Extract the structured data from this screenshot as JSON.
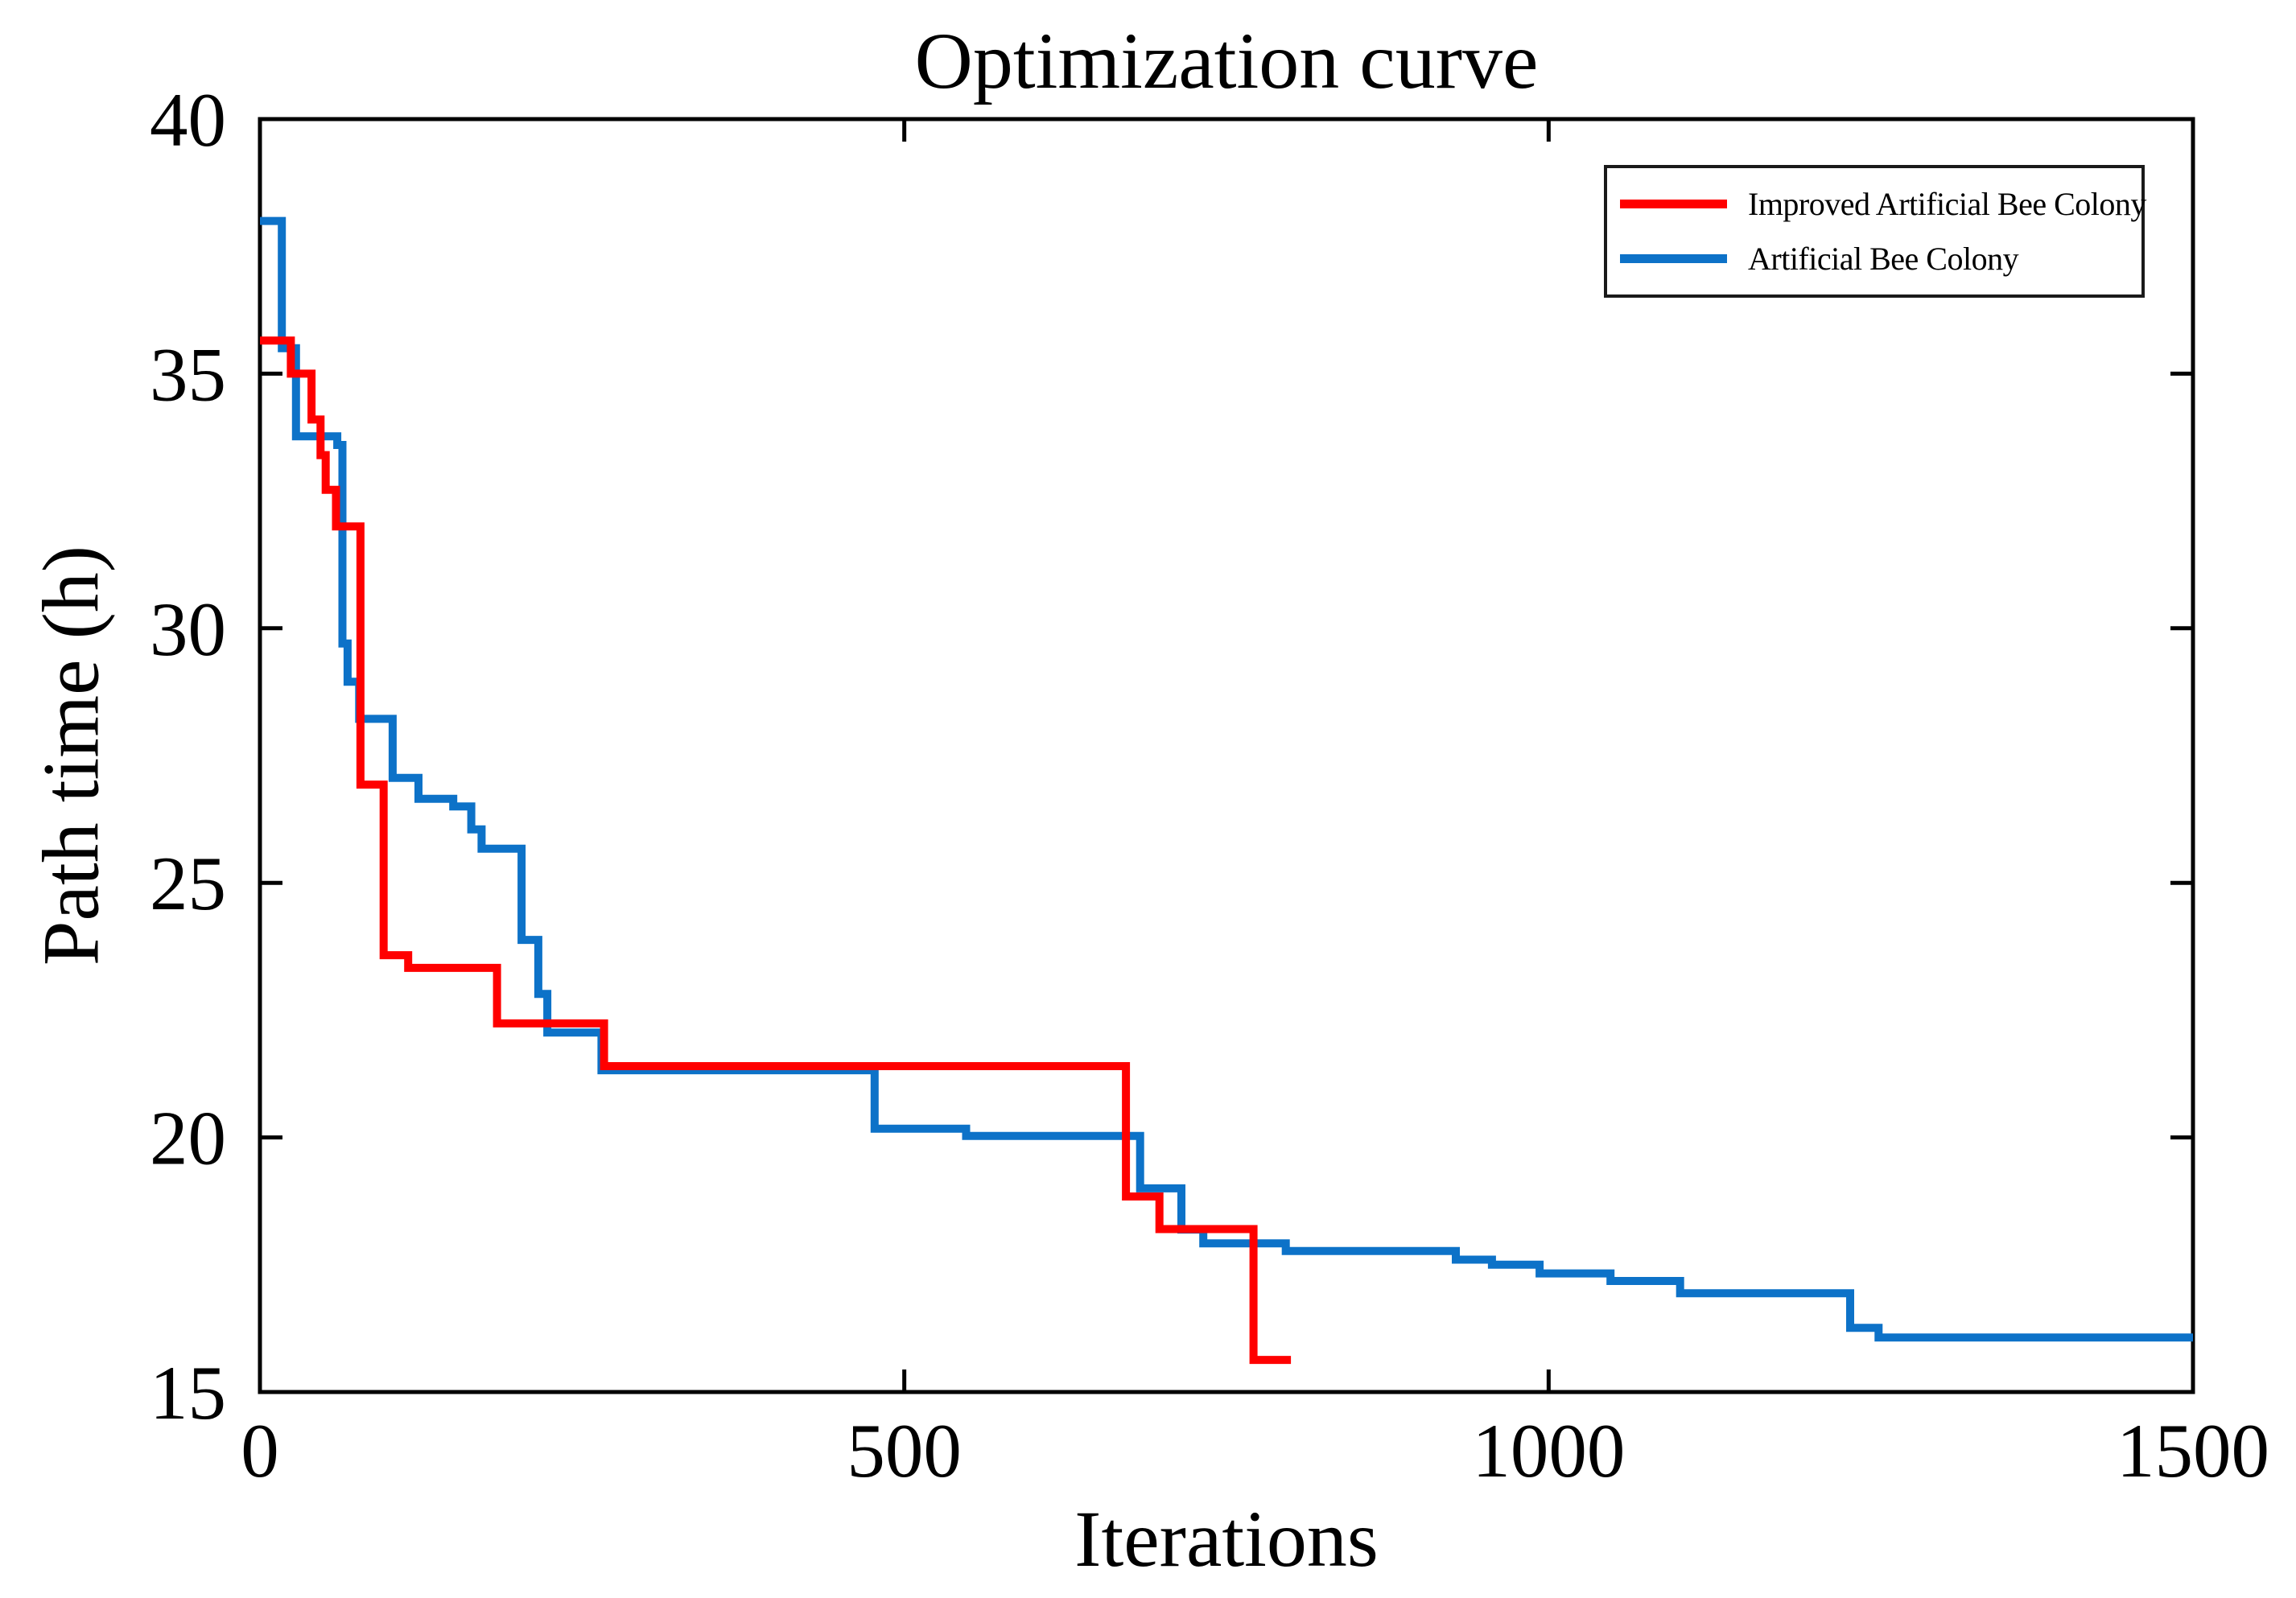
{
  "chart_data": {
    "type": "line",
    "step": true,
    "title": "Optimization curve",
    "xlabel": "Iterations",
    "ylabel": "Path time (h)",
    "xlim": [
      0,
      1500
    ],
    "ylim": [
      15,
      40
    ],
    "xticks": [
      "0",
      "500",
      "1000",
      "1500"
    ],
    "yticks": [
      "15",
      "20",
      "25",
      "30",
      "35",
      "40"
    ],
    "grid": false,
    "legend_position": "top-right",
    "axis_color": "#000000",
    "series": [
      {
        "name": "Improved Artificial Bee Colony",
        "color": "#FF0000",
        "end_x": 800,
        "points": [
          [
            0,
            35.65
          ],
          [
            24,
            35.0
          ],
          [
            40,
            34.1
          ],
          [
            47,
            33.4
          ],
          [
            51,
            32.72
          ],
          [
            59,
            32.0
          ],
          [
            78,
            26.93
          ],
          [
            96,
            23.58
          ],
          [
            115,
            23.33
          ],
          [
            184,
            22.24
          ],
          [
            267,
            21.4
          ],
          [
            672,
            18.84
          ],
          [
            698,
            18.2
          ],
          [
            771,
            15.63
          ]
        ]
      },
      {
        "name": "Artificial Bee Colony",
        "color": "#0D72C8",
        "end_x": 1500,
        "points": [
          [
            0,
            38.0
          ],
          [
            17,
            35.5
          ],
          [
            28,
            33.77
          ],
          [
            60,
            33.6
          ],
          [
            64,
            29.7
          ],
          [
            68,
            28.95
          ],
          [
            77,
            28.22
          ],
          [
            103,
            27.06
          ],
          [
            123,
            26.65
          ],
          [
            150,
            26.5
          ],
          [
            164,
            26.05
          ],
          [
            172,
            25.67
          ],
          [
            203,
            23.88
          ],
          [
            216,
            22.82
          ],
          [
            223,
            22.06
          ],
          [
            265,
            21.32
          ],
          [
            477,
            20.17
          ],
          [
            548,
            20.03
          ],
          [
            683,
            19.0
          ],
          [
            715,
            18.19
          ],
          [
            732,
            17.92
          ],
          [
            796,
            17.77
          ],
          [
            928,
            17.6
          ],
          [
            956,
            17.5
          ],
          [
            993,
            17.33
          ],
          [
            1048,
            17.18
          ],
          [
            1102,
            16.94
          ],
          [
            1234,
            16.26
          ],
          [
            1256,
            16.07
          ]
        ]
      }
    ]
  }
}
